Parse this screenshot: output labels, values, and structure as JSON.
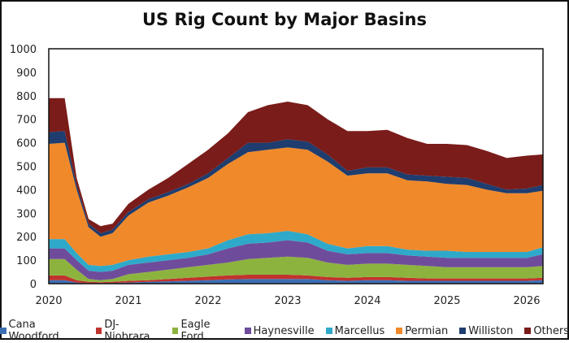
{
  "chart_data": {
    "type": "area",
    "stacked": true,
    "title": "US Rig Count by Major Basins",
    "xlabel": "",
    "ylabel": "",
    "ylim": [
      0,
      1000
    ],
    "yticks": [
      0,
      100,
      200,
      300,
      400,
      500,
      600,
      700,
      800,
      900,
      1000
    ],
    "xlim": [
      2020,
      2026.2
    ],
    "xticks": [
      2020,
      2021,
      2022,
      2023,
      2024,
      2025,
      2026
    ],
    "legend_position": "bottom",
    "x": [
      2020.0,
      2020.2,
      2020.35,
      2020.5,
      2020.65,
      2020.8,
      2021.0,
      2021.25,
      2021.5,
      2021.75,
      2022.0,
      2022.25,
      2022.5,
      2022.75,
      2023.0,
      2023.25,
      2023.5,
      2023.75,
      2024.0,
      2024.25,
      2024.5,
      2024.75,
      2025.0,
      2025.25,
      2025.5,
      2025.75,
      2026.0,
      2026.2
    ],
    "series": [
      {
        "name": "Cana Woodford",
        "color": "#3c6eb4",
        "values": [
          15,
          15,
          5,
          2,
          2,
          3,
          5,
          8,
          10,
          12,
          15,
          18,
          20,
          20,
          20,
          20,
          15,
          12,
          15,
          15,
          12,
          12,
          12,
          12,
          12,
          12,
          12,
          15
        ]
      },
      {
        "name": "DJ-Niobrara",
        "color": "#c0332e",
        "values": [
          20,
          20,
          10,
          6,
          4,
          5,
          7,
          7,
          10,
          13,
          15,
          17,
          18,
          18,
          18,
          15,
          13,
          13,
          13,
          13,
          13,
          10,
          10,
          10,
          10,
          10,
          10,
          10
        ]
      },
      {
        "name": "Eagle Ford",
        "color": "#8db33f",
        "values": [
          70,
          70,
          45,
          12,
          9,
          12,
          28,
          35,
          40,
          45,
          50,
          55,
          67,
          72,
          77,
          75,
          62,
          55,
          57,
          57,
          55,
          53,
          48,
          48,
          48,
          48,
          48,
          50
        ]
      },
      {
        "name": "Haynesville",
        "color": "#6f4c9b",
        "values": [
          45,
          45,
          40,
          35,
          35,
          35,
          40,
          40,
          40,
          40,
          45,
          60,
          65,
          65,
          70,
          65,
          50,
          45,
          45,
          45,
          40,
          40,
          40,
          40,
          40,
          40,
          40,
          50
        ]
      },
      {
        "name": "Marcellus",
        "color": "#2fa9c9",
        "values": [
          40,
          40,
          30,
          25,
          25,
          25,
          20,
          25,
          25,
          25,
          25,
          35,
          40,
          40,
          40,
          35,
          30,
          25,
          30,
          30,
          25,
          25,
          30,
          25,
          25,
          25,
          25,
          30
        ]
      },
      {
        "name": "Permian",
        "color": "#f0892a",
        "values": [
          405,
          410,
          270,
          160,
          125,
          135,
          190,
          230,
          250,
          275,
          300,
          325,
          350,
          355,
          355,
          360,
          350,
          310,
          310,
          310,
          295,
          295,
          285,
          285,
          265,
          250,
          250,
          240
        ]
      },
      {
        "name": "Williston",
        "color": "#1f3d6e",
        "values": [
          50,
          50,
          20,
          15,
          15,
          15,
          15,
          15,
          15,
          15,
          20,
          25,
          40,
          30,
          35,
          35,
          30,
          20,
          25,
          25,
          25,
          25,
          30,
          30,
          25,
          15,
          20,
          25
        ]
      },
      {
        "name": "Others",
        "color": "#7a1c1a",
        "values": [
          145,
          140,
          30,
          20,
          30,
          25,
          35,
          40,
          60,
          85,
          100,
          105,
          130,
          160,
          160,
          155,
          150,
          170,
          155,
          160,
          155,
          135,
          140,
          140,
          140,
          135,
          140,
          130
        ]
      }
    ]
  }
}
